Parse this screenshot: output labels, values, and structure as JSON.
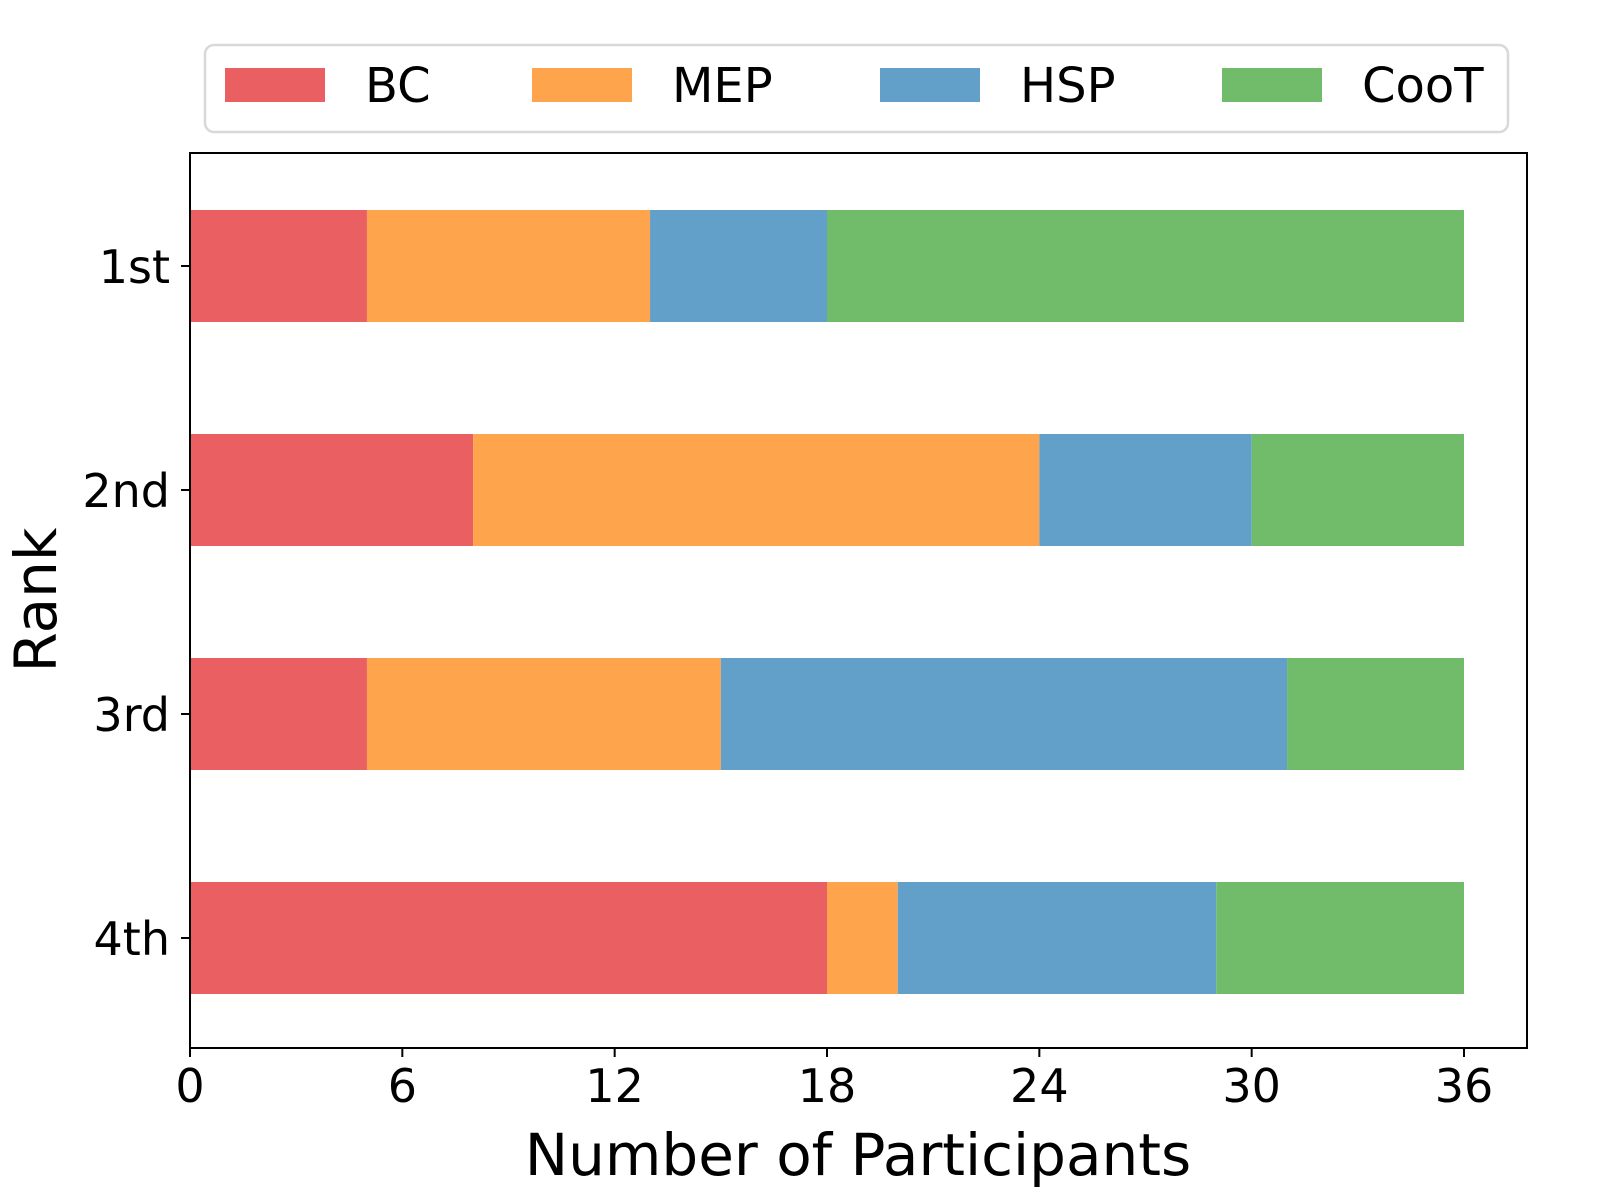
{
  "chart_data": {
    "type": "bar",
    "orientation": "horizontal",
    "stacked": true,
    "title": "",
    "xlabel": "Number of Participants",
    "ylabel": "Rank",
    "categories": [
      "1st",
      "2nd",
      "3rd",
      "4th"
    ],
    "series": [
      {
        "name": "BC",
        "color": "#e95f62",
        "values": [
          5,
          8,
          5,
          18
        ]
      },
      {
        "name": "MEP",
        "color": "#fea44d",
        "values": [
          8,
          16,
          10,
          2
        ]
      },
      {
        "name": "HSP",
        "color": "#62a0ca",
        "values": [
          5,
          6,
          16,
          9
        ]
      },
      {
        "name": "CooT",
        "color": "#71bc6a",
        "values": [
          18,
          6,
          5,
          7
        ]
      }
    ],
    "xlim": [
      0,
      37.8
    ],
    "xticks": [
      0,
      6,
      12,
      18,
      24,
      30,
      36
    ],
    "xtick_labels": [
      "0",
      "6",
      "12",
      "18",
      "24",
      "30",
      "36"
    ],
    "grid": false,
    "legend_position": "top"
  }
}
